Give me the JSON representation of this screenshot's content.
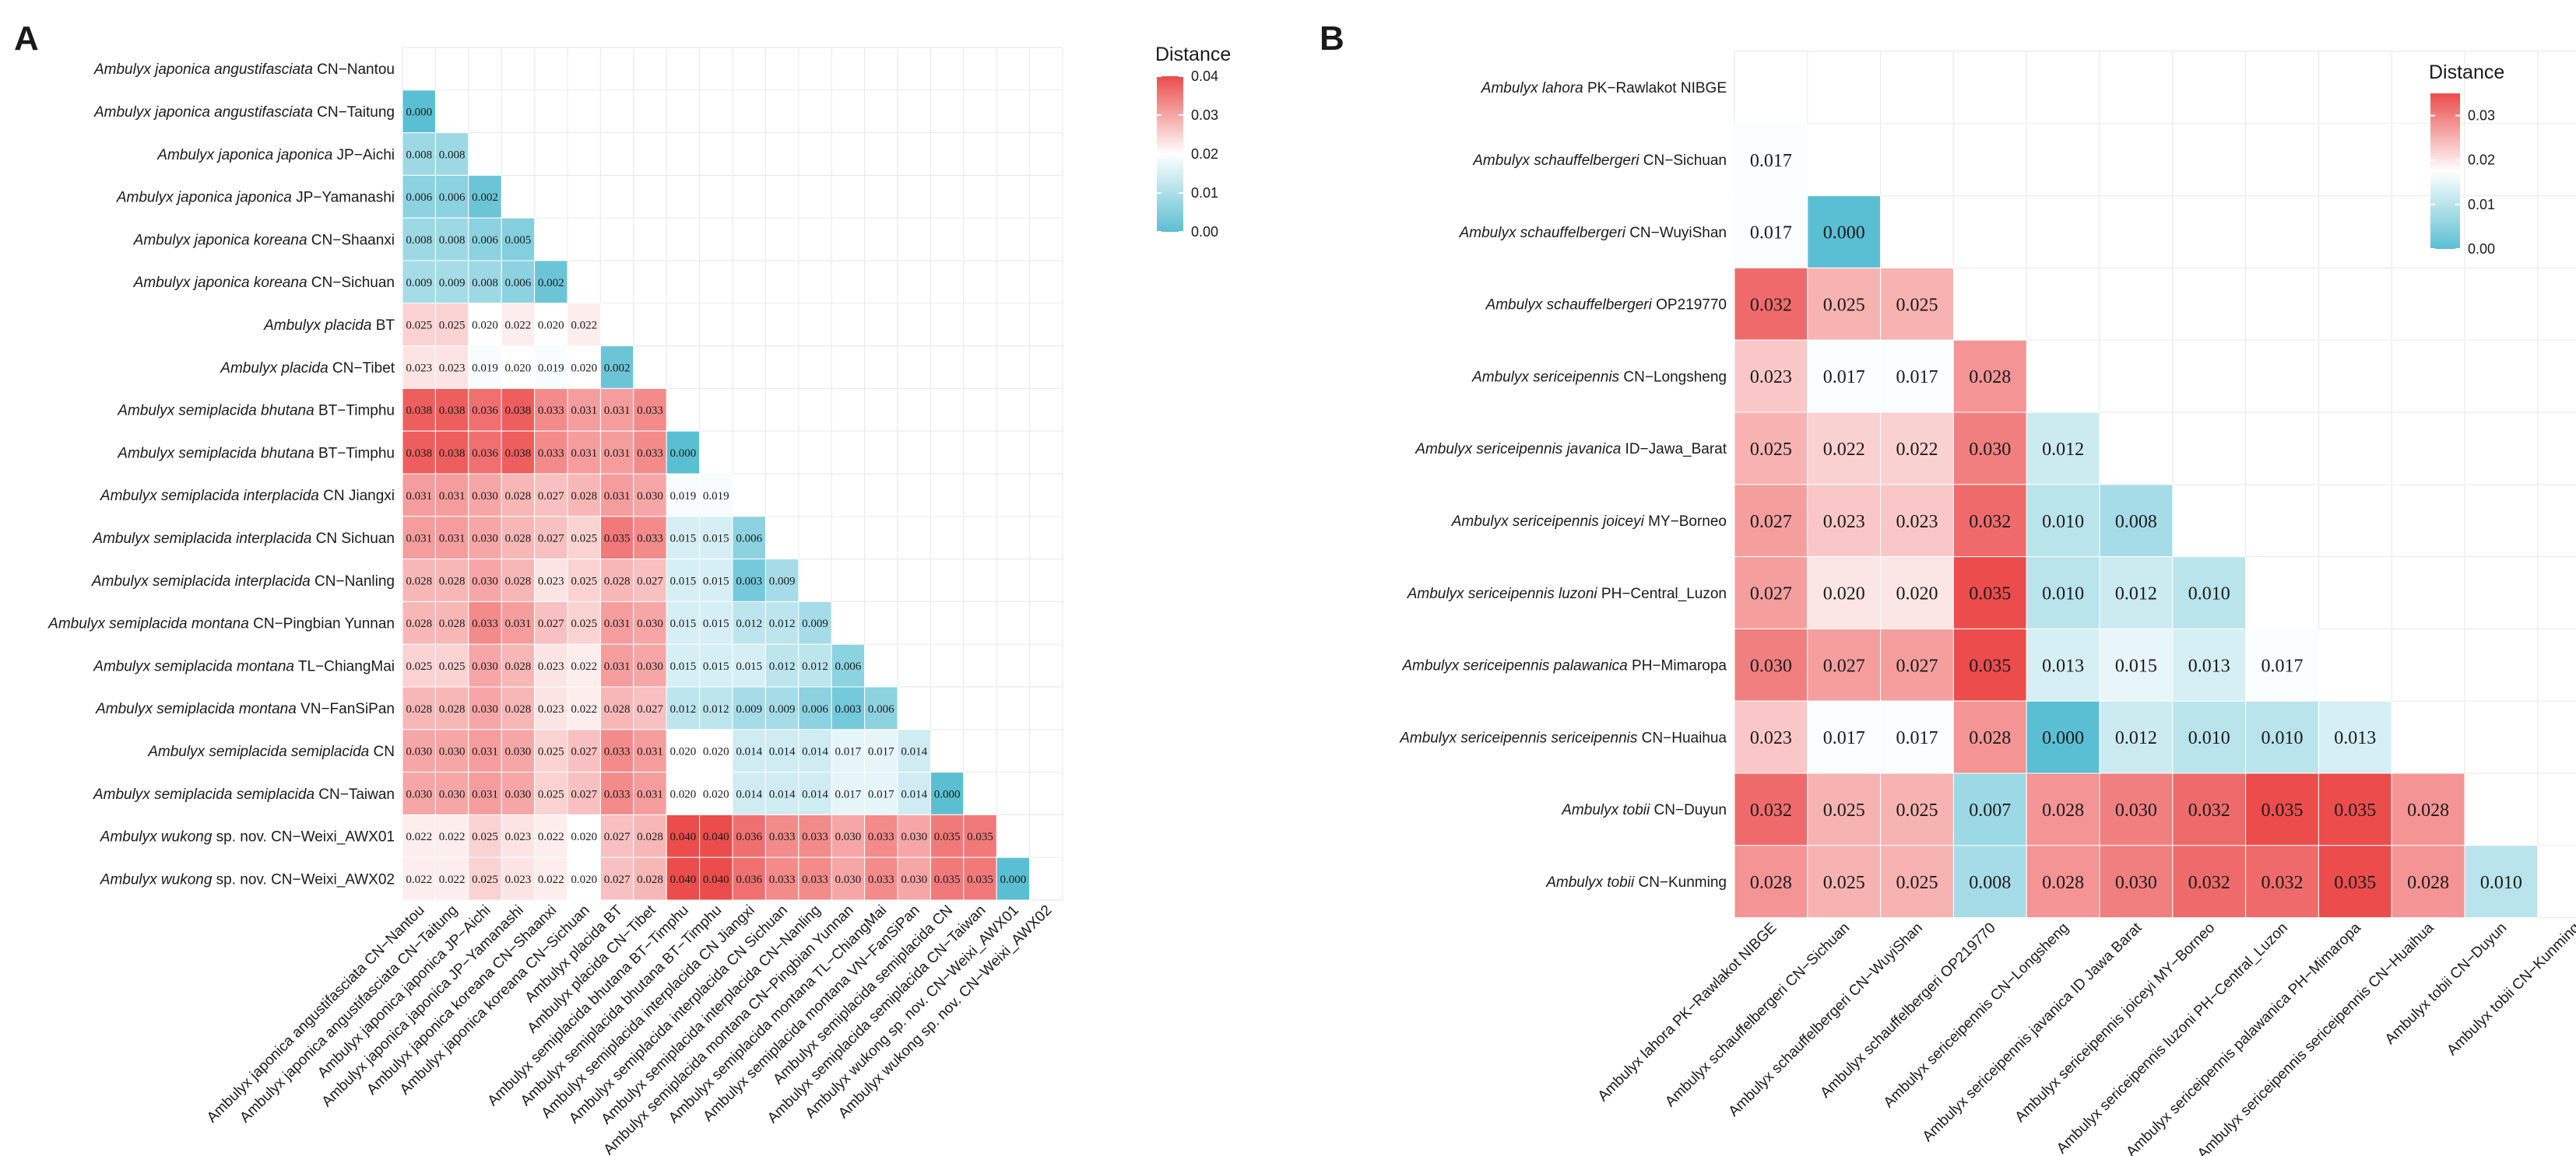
{
  "chart_data": [
    {
      "type": "heatmap",
      "panel": "A",
      "legend_title": "Distance",
      "colorbar": {
        "min": 0.0,
        "max": 0.04,
        "ticks": [
          "0.04",
          "0.03",
          "0.02",
          "0.01",
          "0.00"
        ],
        "low_color": "#5bbfd3",
        "mid_color": "#ffffff",
        "high_color": "#ec4c4c"
      },
      "labels": [
        {
          "genus": "Ambulyx",
          "epithet": "japonica angustifasciata",
          "locality": "CN−Nantou"
        },
        {
          "genus": "Ambulyx",
          "epithet": "japonica angustifasciata",
          "locality": "CN−Taitung"
        },
        {
          "genus": "Ambulyx",
          "epithet": "japonica japonica",
          "locality": "JP−Aichi"
        },
        {
          "genus": "Ambulyx",
          "epithet": "japonica japonica",
          "locality": "JP−Yamanashi"
        },
        {
          "genus": "Ambulyx",
          "epithet": "japonica koreana",
          "locality": "CN−Shaanxi"
        },
        {
          "genus": "Ambulyx",
          "epithet": "japonica koreana",
          "locality": "CN−Sichuan"
        },
        {
          "genus": "Ambulyx",
          "epithet": "placida",
          "locality": "BT"
        },
        {
          "genus": "Ambulyx",
          "epithet": "placida",
          "locality": "CN−Tibet"
        },
        {
          "genus": "Ambulyx",
          "epithet": "semiplacida bhutana",
          "locality": "BT−Timphu"
        },
        {
          "genus": "Ambulyx",
          "epithet": "semiplacida bhutana",
          "locality": "BT−Timphu"
        },
        {
          "genus": "Ambulyx",
          "epithet": "semiplacida interplacida",
          "locality": "CN Jiangxi"
        },
        {
          "genus": "Ambulyx",
          "epithet": "semiplacida interplacida",
          "locality": "CN Sichuan"
        },
        {
          "genus": "Ambulyx",
          "epithet": "semiplacida interplacida",
          "locality": "CN−Nanling"
        },
        {
          "genus": "Ambulyx",
          "epithet": "semiplacida montana",
          "locality": "CN−Pingbian Yunnan"
        },
        {
          "genus": "Ambulyx",
          "epithet": "semiplacida montana",
          "locality": "TL−ChiangMai"
        },
        {
          "genus": "Ambulyx",
          "epithet": "semiplacida montana",
          "locality": "VN−FanSiPan"
        },
        {
          "genus": "Ambulyx",
          "epithet": "semiplacida semiplacida",
          "locality": "CN"
        },
        {
          "genus": "Ambulyx",
          "epithet": "semiplacida semiplacida",
          "locality": "CN−Taiwan"
        },
        {
          "genus": "Ambulyx",
          "epithet": "wukong",
          "locality": "sp. nov. CN−Weixi_AWX01"
        },
        {
          "genus": "Ambulyx",
          "epithet": "wukong",
          "locality": "sp. nov. CN−Weixi_AWX02"
        }
      ],
      "x_labels": [
        "Ambulyx japonica angustifasciata CN−Nantou",
        "Ambulyx japonica angustifasciata CN−Taitung",
        "Ambulyx japonica japonica JP−Aichi",
        "Ambulyx japonica japonica JP−Yamanashi",
        "Ambulyx japonica koreana CN−Shaanxi",
        "Ambulyx japonica koreana CN−Sichuan",
        "Ambulyx placida BT",
        "Ambulyx placida CN−Tibet",
        "Ambulyx semiplacida bhutana BT−Timphu",
        "Ambulyx semiplacida bhutana BT−Timphu",
        "Ambulyx semiplacida interplacida CN Jiangxi",
        "Ambulyx semiplacida interplacida CN Sichuan",
        "Ambulyx semiplacida interplacida CN−Nanling",
        "Ambulyx semiplacida montana CN−Pingbian Yunnan",
        "Ambulyx semiplacida montana TL−ChiangMai",
        "Ambulyx semiplacida montana VN−FanSiPan",
        "Ambulyx semiplacida semiplacida CN",
        "Ambulyx semiplacida semiplacida CN−Taiwan",
        "Ambulyx wukong sp. nov. CN−Weixi_AWX01",
        "Ambulyx wukong sp. nov. CN−Weixi_AWX02"
      ],
      "matrix": [
        [],
        [
          0.0
        ],
        [
          0.008,
          0.008
        ],
        [
          0.006,
          0.006,
          0.002
        ],
        [
          0.008,
          0.008,
          0.006,
          0.005
        ],
        [
          0.009,
          0.009,
          0.008,
          0.006,
          0.002
        ],
        [
          0.025,
          0.025,
          0.02,
          0.022,
          0.02,
          0.022
        ],
        [
          0.023,
          0.023,
          0.019,
          0.02,
          0.019,
          0.02,
          0.002
        ],
        [
          0.038,
          0.038,
          0.036,
          0.038,
          0.033,
          0.031,
          0.031,
          0.033
        ],
        [
          0.038,
          0.038,
          0.036,
          0.038,
          0.033,
          0.031,
          0.031,
          0.033,
          0.0
        ],
        [
          0.031,
          0.031,
          0.03,
          0.028,
          0.027,
          0.028,
          0.031,
          0.03,
          0.019,
          0.019
        ],
        [
          0.031,
          0.031,
          0.03,
          0.028,
          0.027,
          0.025,
          0.035,
          0.033,
          0.015,
          0.015,
          0.006
        ],
        [
          0.028,
          0.028,
          0.03,
          0.028,
          0.023,
          0.025,
          0.028,
          0.027,
          0.015,
          0.015,
          0.003,
          0.009
        ],
        [
          0.028,
          0.028,
          0.033,
          0.031,
          0.027,
          0.025,
          0.031,
          0.03,
          0.015,
          0.015,
          0.012,
          0.012,
          0.009
        ],
        [
          0.025,
          0.025,
          0.03,
          0.028,
          0.023,
          0.022,
          0.031,
          0.03,
          0.015,
          0.015,
          0.015,
          0.012,
          0.012,
          0.006
        ],
        [
          0.028,
          0.028,
          0.03,
          0.028,
          0.023,
          0.022,
          0.028,
          0.027,
          0.012,
          0.012,
          0.009,
          0.009,
          0.006,
          0.003,
          0.006
        ],
        [
          0.03,
          0.03,
          0.031,
          0.03,
          0.025,
          0.027,
          0.033,
          0.031,
          0.02,
          0.02,
          0.014,
          0.014,
          0.014,
          0.017,
          0.017,
          0.014
        ],
        [
          0.03,
          0.03,
          0.031,
          0.03,
          0.025,
          0.027,
          0.033,
          0.031,
          0.02,
          0.02,
          0.014,
          0.014,
          0.014,
          0.017,
          0.017,
          0.014,
          0.0
        ],
        [
          0.022,
          0.022,
          0.025,
          0.023,
          0.022,
          0.02,
          0.027,
          0.028,
          0.04,
          0.04,
          0.036,
          0.033,
          0.033,
          0.03,
          0.033,
          0.03,
          0.035,
          0.035
        ],
        [
          0.022,
          0.022,
          0.025,
          0.023,
          0.022,
          0.02,
          0.027,
          0.028,
          0.04,
          0.04,
          0.036,
          0.033,
          0.033,
          0.03,
          0.033,
          0.03,
          0.035,
          0.035,
          0.0
        ]
      ]
    },
    {
      "type": "heatmap",
      "panel": "B",
      "legend_title": "Distance",
      "colorbar": {
        "min": 0.0,
        "max": 0.035,
        "ticks": [
          "0.03",
          "0.02",
          "0.01",
          "0.00"
        ],
        "low_color": "#5bbfd3",
        "mid_color": "#ffffff",
        "high_color": "#ec4c4c"
      },
      "labels": [
        {
          "genus": "Ambulyx",
          "epithet": "lahora",
          "locality": "PK−Rawlakot NIBGE"
        },
        {
          "genus": "Ambulyx",
          "epithet": "schauffelbergeri",
          "locality": "CN−Sichuan"
        },
        {
          "genus": "Ambulyx",
          "epithet": "schauffelbergeri",
          "locality": "CN−WuyiShan"
        },
        {
          "genus": "Ambulyx",
          "epithet": "schauffelbergeri",
          "locality": "OP219770"
        },
        {
          "genus": "Ambulyx",
          "epithet": "sericeipennis",
          "locality": "CN−Longsheng"
        },
        {
          "genus": "Ambulyx",
          "epithet": "sericeipennis javanica",
          "locality": "ID−Jawa_Barat"
        },
        {
          "genus": "Ambulyx",
          "epithet": "sericeipennis joiceyi",
          "locality": "MY−Borneo"
        },
        {
          "genus": "Ambulyx",
          "epithet": "sericeipennis luzoni",
          "locality": "PH−Central_Luzon"
        },
        {
          "genus": "Ambulyx",
          "epithet": "sericeipennis palawanica",
          "locality": "PH−Mimaropa"
        },
        {
          "genus": "Ambulyx",
          "epithet": "sericeipennis sericeipennis",
          "locality": "CN−Huaihua"
        },
        {
          "genus": "Ambulyx",
          "epithet": "tobii",
          "locality": "CN−Duyun"
        },
        {
          "genus": "Ambulyx",
          "epithet": "tobii",
          "locality": "CN−Kunming"
        }
      ],
      "x_labels": [
        "Ambulyx lahora PK−Rawlakot NIBGE",
        "Ambulyx schauffelbergeri CN−Sichuan",
        "Ambulyx schauffelbergeri CN−WuyiShan",
        "Ambulyx schauffelbergeri OP219770",
        "Ambulyx sericeipennis CN−Longsheng",
        "Ambulyx sericeipennis javanica ID Jawa Barat",
        "Ambulyx sericeipennis joiceyi MY−Borneo",
        "Ambulyx sericeipennis luzoni PH−Central_Luzon",
        "Ambulyx sericeipennis palawanica PH−Mimaropa",
        "Ambulyx sericeipennis sericeipennis CN−Huaihua",
        "Ambulyx tobii CN−Duyun",
        "Ambulyx tobii CN−Kunming"
      ],
      "matrix": [
        [],
        [
          0.017
        ],
        [
          0.017,
          0.0
        ],
        [
          0.032,
          0.025,
          0.025
        ],
        [
          0.023,
          0.017,
          0.017,
          0.028
        ],
        [
          0.025,
          0.022,
          0.022,
          0.03,
          0.012
        ],
        [
          0.027,
          0.023,
          0.023,
          0.032,
          0.01,
          0.008
        ],
        [
          0.027,
          0.02,
          0.02,
          0.035,
          0.01,
          0.012,
          0.01
        ],
        [
          0.03,
          0.027,
          0.027,
          0.035,
          0.013,
          0.015,
          0.013,
          0.017
        ],
        [
          0.023,
          0.017,
          0.017,
          0.028,
          0.0,
          0.012,
          0.01,
          0.01,
          0.013
        ],
        [
          0.032,
          0.025,
          0.025,
          0.007,
          0.028,
          0.03,
          0.032,
          0.035,
          0.035,
          0.028
        ],
        [
          0.028,
          0.025,
          0.025,
          0.008,
          0.028,
          0.03,
          0.032,
          0.032,
          0.035,
          0.028,
          0.01
        ]
      ]
    }
  ]
}
